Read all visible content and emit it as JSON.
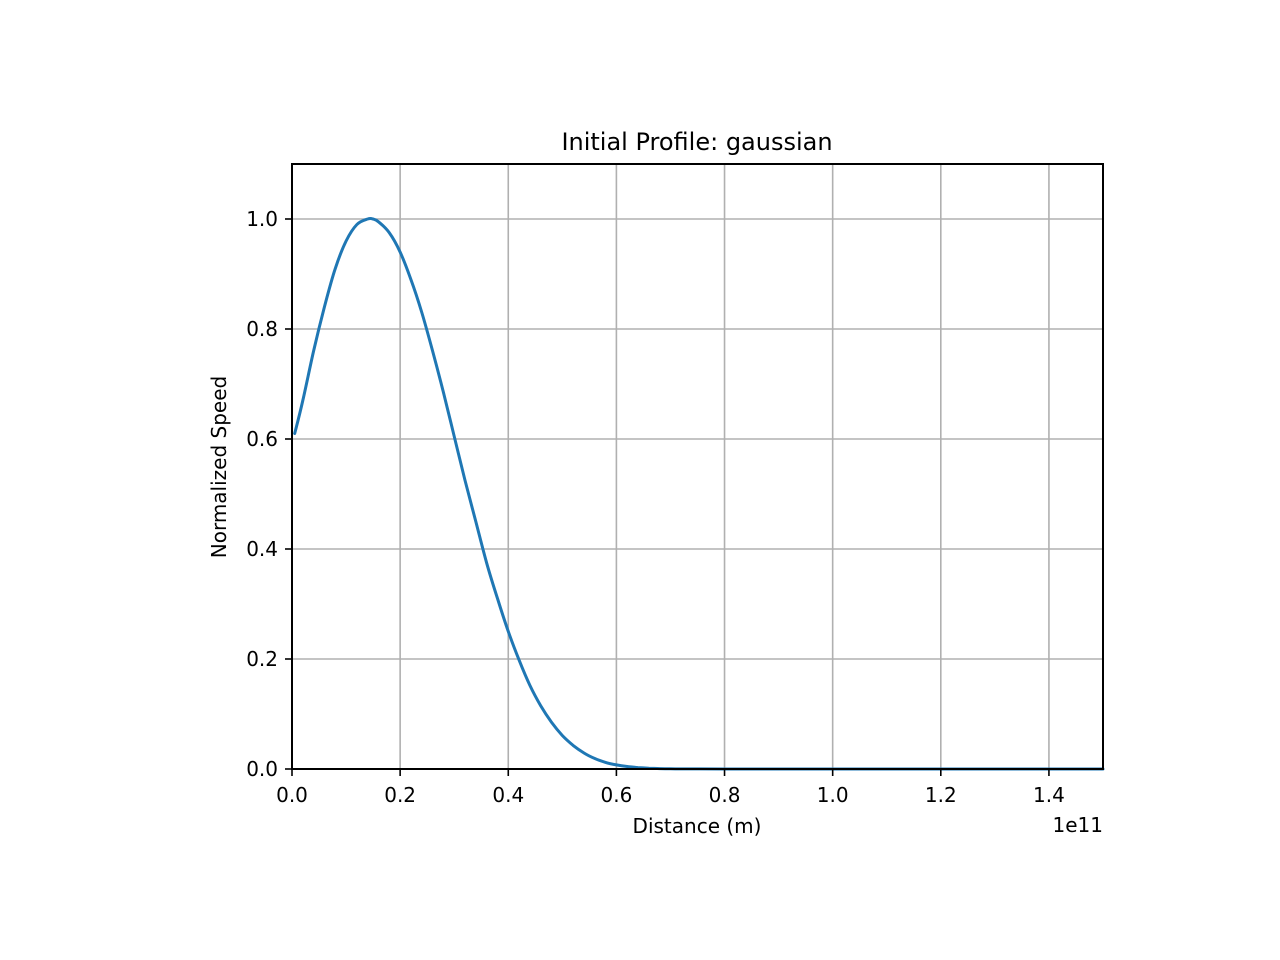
{
  "chart_data": {
    "type": "line",
    "title": "Initial Profile: gaussian",
    "xlabel": "Distance (m)",
    "ylabel": "Normalized Speed",
    "x_offset_label": "1e11",
    "x_scale": 100000000000.0,
    "xlim": [
      0,
      1.5
    ],
    "ylim": [
      0,
      1.1
    ],
    "xticks": [
      0.0,
      0.2,
      0.4,
      0.6,
      0.8,
      1.0,
      1.2,
      1.4
    ],
    "xtick_labels": [
      "0.0",
      "0.2",
      "0.4",
      "0.6",
      "0.8",
      "1.0",
      "1.2",
      "1.4"
    ],
    "yticks": [
      0.0,
      0.2,
      0.4,
      0.6,
      0.8,
      1.0
    ],
    "ytick_labels": [
      "0.0",
      "0.2",
      "0.4",
      "0.6",
      "0.8",
      "1.0"
    ],
    "grid": true,
    "line_color": "#1f77b4",
    "series": [
      {
        "x": [
          0.005,
          0.02,
          0.04,
          0.06,
          0.08,
          0.1,
          0.12,
          0.14,
          0.15,
          0.16,
          0.18,
          0.2,
          0.22,
          0.24,
          0.26,
          0.28,
          0.3,
          0.32,
          0.34,
          0.36,
          0.38,
          0.4,
          0.42,
          0.44,
          0.46,
          0.48,
          0.5,
          0.52,
          0.54,
          0.56,
          0.58,
          0.6,
          0.62,
          0.64,
          0.66,
          0.68,
          0.7,
          0.72,
          0.75,
          0.8,
          0.9,
          1.0,
          1.2,
          1.4,
          1.5
        ],
        "y": [
          0.61,
          0.67,
          0.76,
          0.84,
          0.91,
          0.96,
          0.99,
          1.0,
          1.0,
          0.995,
          0.975,
          0.94,
          0.89,
          0.83,
          0.76,
          0.685,
          0.605,
          0.525,
          0.45,
          0.375,
          0.31,
          0.25,
          0.198,
          0.152,
          0.115,
          0.085,
          0.061,
          0.043,
          0.029,
          0.019,
          0.012,
          0.0075,
          0.0045,
          0.0026,
          0.0015,
          0.0008,
          0.0004,
          0.0002,
          0.0001,
          0,
          0,
          0,
          0,
          0,
          0
        ]
      }
    ]
  }
}
